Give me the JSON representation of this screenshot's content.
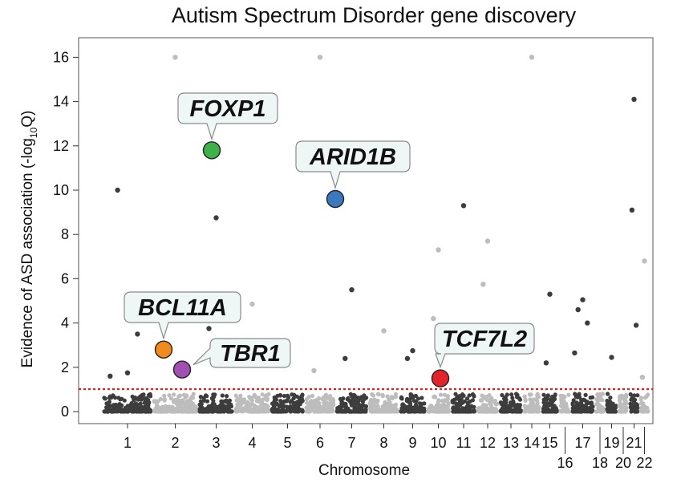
{
  "chart_data": {
    "type": "scatter",
    "title": "Autism Spectrum Disorder gene discovery",
    "xlabel": "Chromosome",
    "ylabel": "Evidence of ASD association (-log",
    "ylabel_subscript": "10",
    "ylabel_suffix": "Q)",
    "ylim": [
      0,
      16.5
    ],
    "yticks": [
      "0",
      "2",
      "4",
      "6",
      "8",
      "10",
      "12",
      "14",
      "16"
    ],
    "threshold": {
      "value": 1,
      "style": "dotted",
      "color": "#dd1f1f"
    },
    "grid": false,
    "point_colors": {
      "odd": "#3d3d3d",
      "even": "#bdbdbd"
    },
    "chromosomes": [
      {
        "label": "1",
        "level": 1
      },
      {
        "label": "2",
        "level": 1
      },
      {
        "label": "3",
        "level": 1
      },
      {
        "label": "4",
        "level": 1
      },
      {
        "label": "5",
        "level": 1
      },
      {
        "label": "6",
        "level": 1
      },
      {
        "label": "7",
        "level": 1
      },
      {
        "label": "8",
        "level": 1
      },
      {
        "label": "9",
        "level": 1
      },
      {
        "label": "10",
        "level": 1
      },
      {
        "label": "11",
        "level": 1
      },
      {
        "label": "12",
        "level": 1
      },
      {
        "label": "13",
        "level": 1
      },
      {
        "label": "14",
        "level": 1
      },
      {
        "label": "15",
        "level": 1
      },
      {
        "label": "16",
        "level": 2
      },
      {
        "label": "17",
        "level": 1
      },
      {
        "label": "18",
        "level": 2
      },
      {
        "label": "19",
        "level": 1
      },
      {
        "label": "20",
        "level": 2
      },
      {
        "label": "21",
        "level": 1
      },
      {
        "label": "22",
        "level": 2
      }
    ],
    "highlighted_genes": [
      {
        "gene": "FOXP1",
        "chromosome": "3",
        "value": 11.8,
        "color": "#3db24a"
      },
      {
        "gene": "ARID1B",
        "chromosome": "6",
        "value": 9.6,
        "color": "#3a78c0"
      },
      {
        "gene": "BCL11A",
        "chromosome": "2",
        "value": 2.8,
        "color": "#f08a1c"
      },
      {
        "gene": "TBR1",
        "chromosome": "2",
        "value": 1.9,
        "color": "#a24fb3"
      },
      {
        "gene": "TCF7L2",
        "chromosome": "10",
        "value": 1.5,
        "color": "#e2232a"
      }
    ],
    "notable_points": [
      {
        "chromosome": "1",
        "value": 1.75
      },
      {
        "chromosome": "1",
        "value": 10.0
      },
      {
        "chromosome": "1",
        "value": 3.5
      },
      {
        "chromosome": "1",
        "value": 1.6
      },
      {
        "chromosome": "2",
        "value": 16.0
      },
      {
        "chromosome": "3",
        "value": 8.75
      },
      {
        "chromosome": "3",
        "value": 3.75
      },
      {
        "chromosome": "4",
        "value": 4.85
      },
      {
        "chromosome": "6",
        "value": 16.0
      },
      {
        "chromosome": "6",
        "value": 1.85
      },
      {
        "chromosome": "7",
        "value": 5.5
      },
      {
        "chromosome": "7",
        "value": 2.4
      },
      {
        "chromosome": "8",
        "value": 3.65
      },
      {
        "chromosome": "9",
        "value": 2.75
      },
      {
        "chromosome": "9",
        "value": 2.4
      },
      {
        "chromosome": "10",
        "value": 7.3
      },
      {
        "chromosome": "10",
        "value": 4.2
      },
      {
        "chromosome": "11",
        "value": 9.3
      },
      {
        "chromosome": "12",
        "value": 7.7
      },
      {
        "chromosome": "12",
        "value": 5.75
      },
      {
        "chromosome": "14",
        "value": 16.0
      },
      {
        "chromosome": "15",
        "value": 5.3
      },
      {
        "chromosome": "15",
        "value": 2.2
      },
      {
        "chromosome": "17",
        "value": 5.05
      },
      {
        "chromosome": "17",
        "value": 4.6
      },
      {
        "chromosome": "17",
        "value": 4.0
      },
      {
        "chromosome": "17",
        "value": 2.65
      },
      {
        "chromosome": "19",
        "value": 2.45
      },
      {
        "chromosome": "21",
        "value": 14.1
      },
      {
        "chromosome": "21",
        "value": 9.1
      },
      {
        "chromosome": "21",
        "value": 3.9
      },
      {
        "chromosome": "22",
        "value": 6.8
      },
      {
        "chromosome": "22",
        "value": 1.55
      }
    ]
  }
}
